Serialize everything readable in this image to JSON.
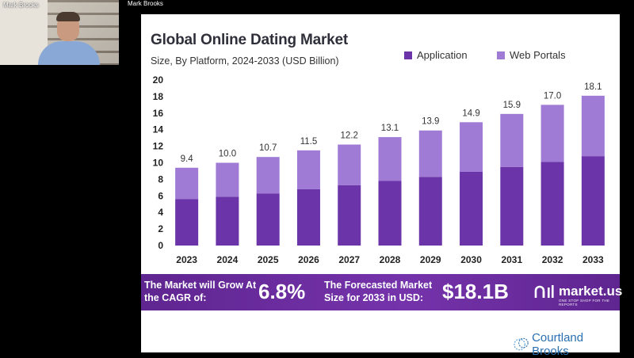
{
  "participants": {
    "tile_name": "Mark Brooks",
    "overlay_name": "Mark Brooks"
  },
  "colors": {
    "application": "#6b34a8",
    "web_portals": "#a07bd6",
    "banner": "#7533ab",
    "axis_text": "#222222"
  },
  "chart_data": {
    "type": "bar",
    "stacked": true,
    "title": "Global Online Dating Market",
    "subtitle": "Size, By Platform, 2024-2033 (USD Billion)",
    "categories": [
      "2023",
      "2024",
      "2025",
      "2026",
      "2027",
      "2028",
      "2029",
      "2030",
      "2031",
      "2032",
      "2033"
    ],
    "series": [
      {
        "name": "Application",
        "values": [
          5.6,
          5.9,
          6.3,
          6.8,
          7.3,
          7.8,
          8.3,
          8.9,
          9.5,
          10.1,
          10.8
        ]
      },
      {
        "name": "Web Portals",
        "values": [
          3.8,
          4.1,
          4.4,
          4.7,
          4.9,
          5.3,
          5.6,
          6.0,
          6.4,
          6.9,
          7.3
        ]
      }
    ],
    "totals": [
      "9.4",
      "10.0",
      "10.7",
      "11.5",
      "12.2",
      "13.1",
      "13.9",
      "14.9",
      "15.9",
      "17.0",
      "18.1"
    ],
    "yticks": [
      0,
      2,
      4,
      6,
      8,
      10,
      12,
      14,
      16,
      18,
      20
    ],
    "ylim": [
      0,
      20
    ],
    "legend_position": "top-right"
  },
  "banner": {
    "cagr_label": "The Market will Grow At the CAGR of:",
    "cagr_value": "6.8%",
    "forecast_label": "The Forecasted Market Size for 2033 in USD:",
    "forecast_value": "$18.1B",
    "logo_text": "market.us",
    "tagline": "ONE STOP SHOP FOR THE REPORTS"
  },
  "branding": {
    "watermark": "Courtland Brooks"
  }
}
